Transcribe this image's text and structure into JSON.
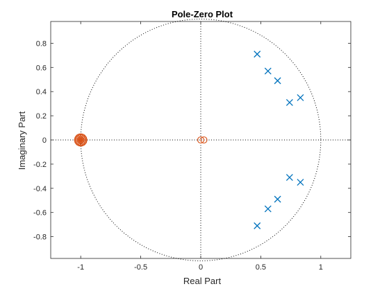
{
  "chart_data": {
    "type": "scatter",
    "title": "Pole-Zero Plot",
    "xlabel": "Real Part",
    "ylabel": "Imaginary Part",
    "xlim": [
      -1.25,
      1.25
    ],
    "ylim": [
      -0.98,
      0.98
    ],
    "xticks": [
      -1,
      -0.5,
      0,
      0.5,
      1
    ],
    "xtick_labels": [
      "-1",
      "-0.5",
      "0",
      "0.5",
      "1"
    ],
    "yticks": [
      -0.8,
      -0.6,
      -0.4,
      -0.2,
      0,
      0.2,
      0.4,
      0.6,
      0.8
    ],
    "ytick_labels": [
      "-0.8",
      "-0.6",
      "-0.4",
      "-0.2",
      "0",
      "0.2",
      "0.4",
      "0.6",
      "0.8"
    ],
    "unit_circle": true,
    "zero_lines": true,
    "grid": false,
    "series": [
      {
        "marker": "x",
        "color": "#0072bd",
        "points": [
          [
            0.47,
            0.71
          ],
          [
            0.56,
            0.57
          ],
          [
            0.64,
            0.49
          ],
          [
            0.74,
            0.31
          ],
          [
            0.83,
            0.35
          ],
          [
            0.47,
            -0.71
          ],
          [
            0.56,
            -0.57
          ],
          [
            0.64,
            -0.49
          ],
          [
            0.74,
            -0.31
          ],
          [
            0.83,
            -0.35
          ]
        ]
      },
      {
        "marker": "o",
        "color": "#d95319",
        "points": [
          [
            -1,
            0
          ],
          [
            -1,
            0
          ],
          [
            -1,
            0
          ],
          [
            -1,
            0
          ],
          [
            -1,
            0
          ],
          [
            -1,
            0
          ],
          [
            -1,
            0
          ],
          [
            -1,
            0
          ],
          [
            -1,
            0
          ],
          [
            -1,
            0
          ],
          [
            -1,
            0
          ],
          [
            -1,
            0
          ],
          [
            -1,
            0
          ],
          [
            -1,
            0
          ],
          [
            -1,
            0
          ],
          [
            0,
            0
          ],
          [
            0,
            0
          ]
        ]
      }
    ]
  }
}
